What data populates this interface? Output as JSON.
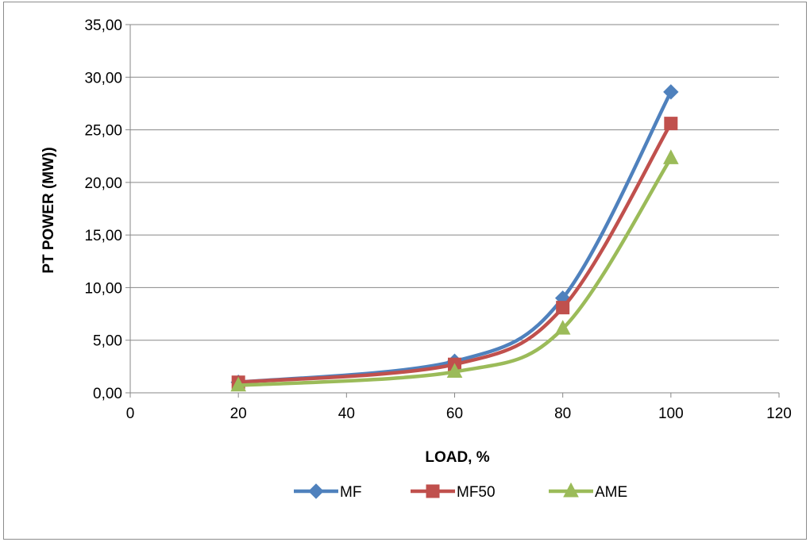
{
  "chart_data": {
    "type": "line",
    "smooth": true,
    "title": "",
    "xlabel": "LOAD, %",
    "ylabel": "PT POWER (MW))",
    "xlim": [
      0,
      120
    ],
    "ylim": [
      0,
      35
    ],
    "x_ticks": [
      0,
      20,
      40,
      60,
      80,
      100,
      120
    ],
    "y_ticks": [
      0,
      5,
      10,
      15,
      20,
      25,
      30,
      35
    ],
    "x_tick_labels": [
      "0",
      "20",
      "40",
      "60",
      "80",
      "100",
      "120"
    ],
    "y_tick_labels": [
      "0,00",
      "5,00",
      "10,00",
      "15,00",
      "20,00",
      "25,00",
      "30,00",
      "35,00"
    ],
    "grid": "horizontal",
    "legend_position": "bottom",
    "x": [
      20,
      60,
      80,
      100
    ],
    "series": [
      {
        "name": "MF",
        "values": [
          1.0,
          3.0,
          9.0,
          28.6
        ],
        "color": "#4f81bd",
        "marker": "diamond"
      },
      {
        "name": "MF50",
        "values": [
          1.0,
          2.7,
          8.1,
          25.6
        ],
        "color": "#c0504d",
        "marker": "square"
      },
      {
        "name": "AME",
        "values": [
          0.7,
          2.0,
          6.1,
          22.3
        ],
        "color": "#9bbb59",
        "marker": "triangle"
      }
    ]
  }
}
